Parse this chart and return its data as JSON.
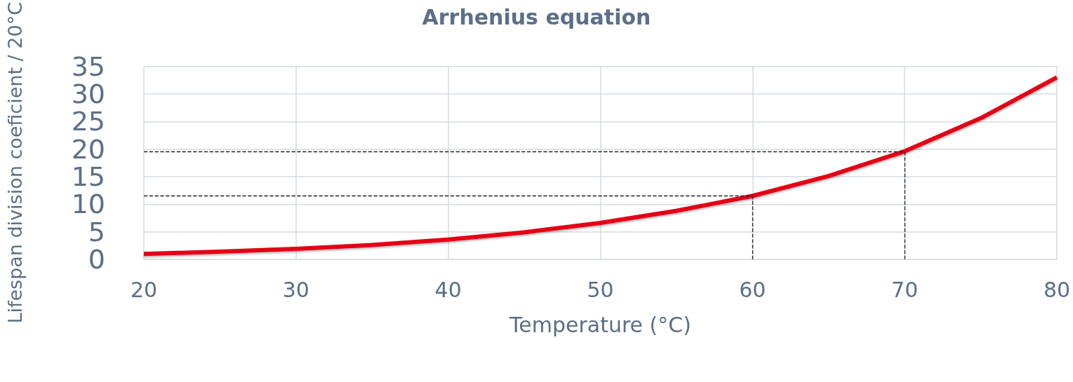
{
  "chart_data": {
    "type": "line",
    "title": "Arrhenius equation",
    "xlabel": "Temperature (°C)",
    "ylabel": "Lifespan division coeficient / 20°C",
    "x": [
      20,
      25,
      30,
      35,
      40,
      45,
      50,
      55,
      60,
      65,
      70,
      75,
      80
    ],
    "series": [
      {
        "color": "#e30613",
        "values": [
          1,
          1.4,
          1.9,
          2.6,
          3.6,
          4.9,
          6.6,
          8.8,
          11.5,
          15.1,
          19.6,
          25.6,
          33
        ]
      }
    ],
    "xlim": [
      20,
      80
    ],
    "xticks": [
      20,
      30,
      40,
      50,
      60,
      70,
      80
    ],
    "ylim": [
      0,
      35
    ],
    "yticks": [
      0,
      5,
      10,
      15,
      20,
      25,
      30,
      35
    ],
    "grid": true,
    "marker": "none",
    "line_style": "solid",
    "ref_lines": [
      {
        "axis": "y",
        "value": 11.5,
        "color": "#222222",
        "line_style": "dashed"
      },
      {
        "axis": "y",
        "value": 19.6,
        "color": "#222222",
        "line_style": "dashed"
      },
      {
        "axis": "x",
        "value": 60,
        "color": "#222222",
        "line_style": "dashed"
      },
      {
        "axis": "x",
        "value": 70,
        "color": "#222222",
        "line_style": "dashed"
      }
    ]
  }
}
